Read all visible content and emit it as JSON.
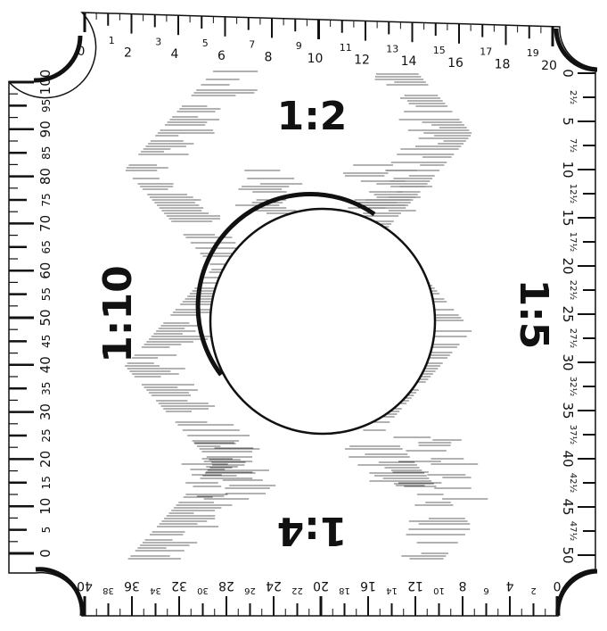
{
  "ratios": {
    "top": "1:2",
    "left": "1:10",
    "right": "1:5",
    "bottom": "1:4"
  },
  "scales": {
    "top": {
      "labels": [
        "0",
        "1",
        "2",
        "3",
        "4",
        "5",
        "6",
        "7",
        "8",
        "9",
        "10",
        "11",
        "12",
        "13",
        "14",
        "15",
        "16",
        "17",
        "18",
        "19",
        "20"
      ],
      "description": "ratio 1:2 scale, 0 to 20"
    },
    "left": {
      "labels": [
        "0",
        "5",
        "10",
        "15",
        "20",
        "25",
        "30",
        "35",
        "40",
        "45",
        "50",
        "55",
        "60",
        "65",
        "70",
        "75",
        "80",
        "85",
        "90",
        "95",
        "100"
      ]
    },
    "right": {
      "labels": [
        "0",
        "2½",
        "5",
        "7½",
        "10",
        "12½",
        "15",
        "17½",
        "20",
        "22½",
        "25",
        "27½",
        "30",
        "32½",
        "35",
        "37½",
        "40",
        "42½",
        "45",
        "47½",
        "50"
      ]
    },
    "bottom": {
      "labels": [
        "0",
        "2",
        "4",
        "6",
        "8",
        "10",
        "12",
        "14",
        "16",
        "18",
        "20",
        "22",
        "24",
        "26",
        "28",
        "30",
        "32",
        "34",
        "36",
        "38",
        "40"
      ]
    }
  },
  "colors": {
    "ink": "#111111",
    "paper": "#ffffff"
  }
}
